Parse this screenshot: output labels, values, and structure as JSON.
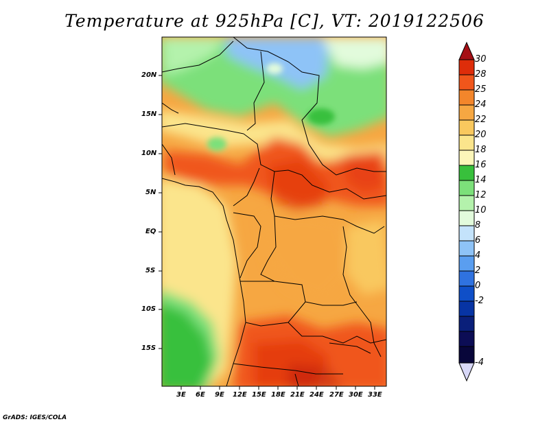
{
  "title": "Temperature at 925hPa [C], VT: 2019122506",
  "credit": "GrADS: IGES/COLA",
  "map": {
    "lat_labels": [
      "20N",
      "15N",
      "10N",
      "5N",
      "EQ",
      "5S",
      "10S",
      "15S"
    ],
    "lon_labels": [
      "3E",
      "6E",
      "9E",
      "12E",
      "15E",
      "18E",
      "21E",
      "24E",
      "27E",
      "30E",
      "33E"
    ]
  },
  "colorbar": {
    "labels": [
      "30",
      "28",
      "25",
      "24",
      "22",
      "20",
      "18",
      "16",
      "14",
      "12",
      "10",
      "8",
      "6",
      "4",
      "2",
      "0",
      "-2",
      "-4"
    ],
    "colors": [
      "#a50f15",
      "#de2d0a",
      "#f0561b",
      "#f3862b",
      "#f6a742",
      "#f9c85e",
      "#fbe58c",
      "#fcf6b9",
      "#38c03c",
      "#7ce07a",
      "#b4f2ac",
      "#e2fbdc",
      "#c4e3fb",
      "#8ec3f7",
      "#5a9ef0",
      "#2f72e0",
      "#0f4fc8",
      "#0734a4",
      "#0a1f7a",
      "#0c0d55",
      "#d8d8f8"
    ]
  },
  "colors": {
    "hot": "#f0561b",
    "warm": "#f6a742",
    "mild": "#fbe58c",
    "cool_green": "#7ce07a",
    "cold_blue": "#8ec3f7"
  }
}
